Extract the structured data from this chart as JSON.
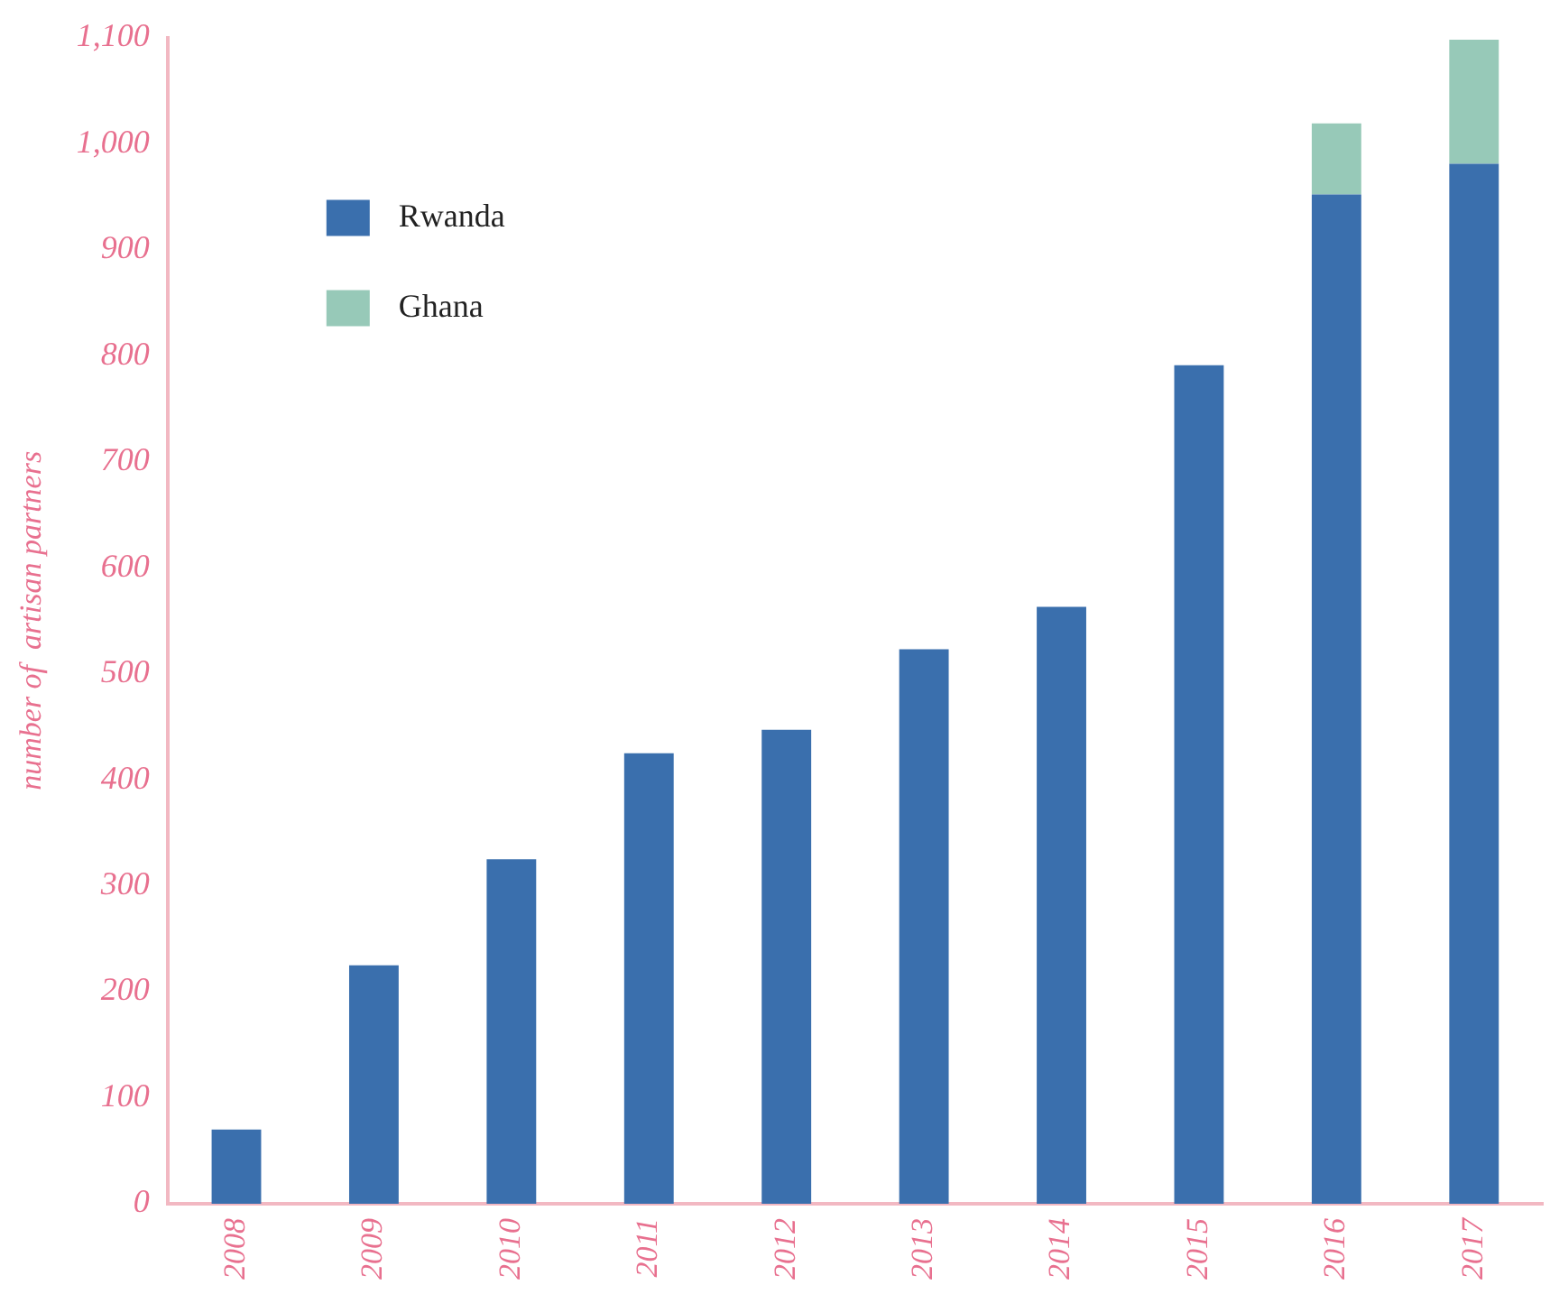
{
  "chart_data": {
    "type": "bar",
    "stacked": true,
    "ylabel": "number of  artisan partners",
    "categories": [
      "2008",
      "2009",
      "2010",
      "2011",
      "2012",
      "2013",
      "2014",
      "2015",
      "2016",
      "2017"
    ],
    "series": [
      {
        "name": "Rwanda",
        "color": "#3a6fad",
        "values": [
          70,
          225,
          325,
          425,
          447,
          523,
          563,
          791,
          952,
          981
        ]
      },
      {
        "name": "Ghana",
        "color": "#97c9b8",
        "values": [
          null,
          null,
          null,
          null,
          null,
          null,
          null,
          null,
          67,
          117
        ]
      }
    ],
    "ylim": [
      0,
      1100
    ],
    "yticks": [
      0,
      {
        "value": 100,
        "label": "100"
      },
      200,
      300,
      400,
      500,
      600,
      700,
      800,
      900,
      {
        "value": 1000,
        "label": "1,000"
      },
      {
        "value": 1100,
        "label": "1,100"
      }
    ],
    "grid": false,
    "legend": "top left"
  }
}
